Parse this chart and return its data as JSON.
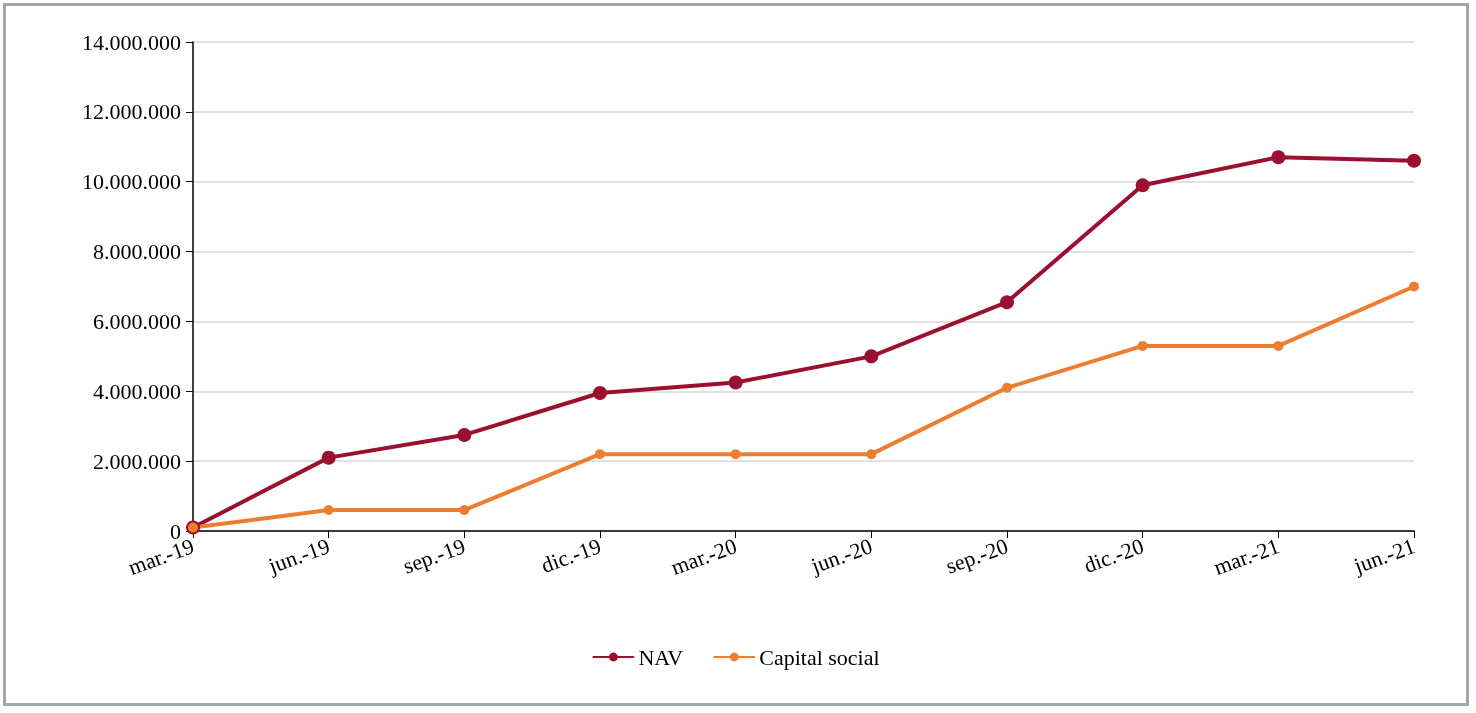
{
  "chart_data": {
    "type": "line",
    "categories": [
      "mar.-19",
      "jun.-19",
      "sep.-19",
      "dic.-19",
      "mar.-20",
      "jun.-20",
      "sep.-20",
      "dic.-20",
      "mar.-21",
      "jun.-21"
    ],
    "series": [
      {
        "name": "NAV",
        "color": "#9b1030",
        "values": [
          100000,
          2100000,
          2750000,
          3950000,
          4250000,
          5000000,
          6550000,
          9900000,
          10700000,
          10600000
        ]
      },
      {
        "name": "Capital social",
        "color": "#ed7d31",
        "values": [
          100000,
          600000,
          600000,
          2200000,
          2200000,
          2200000,
          4100000,
          5300000,
          5300000,
          7000000
        ]
      }
    ],
    "ylim": [
      0,
      14000000
    ],
    "yticks": [
      0,
      {
        "value": 2000000,
        "label": "2.000.000"
      },
      {
        "value": 4000000,
        "label": "4.000.000"
      },
      {
        "value": 6000000,
        "label": "6.000.000"
      },
      {
        "value": 8000000,
        "label": "8.000.000"
      },
      {
        "value": 10000000,
        "label": "10.000.000"
      },
      {
        "value": 12000000,
        "label": "12.000.000"
      },
      {
        "value": 14000000,
        "label": "14.000.000"
      }
    ],
    "grid": "y",
    "legend": "bottom",
    "marker": "circle",
    "line_style": "solid"
  }
}
